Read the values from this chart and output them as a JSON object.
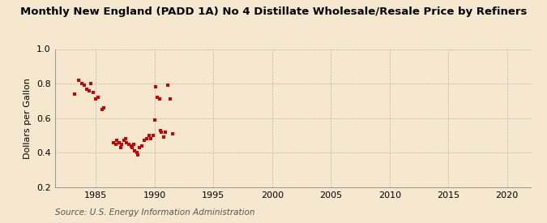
{
  "title": "Monthly New England (PADD 1A) No 4 Distillate Wholesale/Resale Price by Refiners",
  "ylabel": "Dollars per Gallon",
  "source": "Source: U.S. Energy Information Administration",
  "background_color": "#f5e8ce",
  "plot_bg_color": "#f5e8ce",
  "marker_color": "#cc0000",
  "marker_size": 3.5,
  "xlim": [
    1981.5,
    2022
  ],
  "ylim": [
    0.2,
    1.0
  ],
  "xticks": [
    1985,
    1990,
    1995,
    2000,
    2005,
    2010,
    2015,
    2020
  ],
  "yticks": [
    0.2,
    0.4,
    0.6,
    0.8,
    1.0
  ],
  "x": [
    1983.2,
    1983.5,
    1983.8,
    1984.0,
    1984.2,
    1984.4,
    1984.6,
    1984.8,
    1985.0,
    1985.2,
    1985.5,
    1985.7,
    1986.5,
    1986.7,
    1986.8,
    1987.0,
    1987.1,
    1987.2,
    1987.4,
    1987.5,
    1987.6,
    1987.8,
    1988.0,
    1988.1,
    1988.2,
    1988.3,
    1988.5,
    1988.6,
    1988.7,
    1988.9,
    1989.1,
    1989.3,
    1989.5,
    1989.7,
    1989.9,
    1990.0,
    1990.1,
    1990.2,
    1990.4,
    1990.5,
    1990.6,
    1990.8,
    1990.9,
    1991.1,
    1991.3,
    1991.5
  ],
  "y": [
    0.74,
    0.82,
    0.8,
    0.79,
    0.77,
    0.76,
    0.8,
    0.75,
    0.71,
    0.72,
    0.65,
    0.66,
    0.46,
    0.45,
    0.47,
    0.46,
    0.43,
    0.45,
    0.47,
    0.48,
    0.46,
    0.45,
    0.44,
    0.43,
    0.45,
    0.41,
    0.4,
    0.39,
    0.43,
    0.44,
    0.47,
    0.48,
    0.5,
    0.48,
    0.5,
    0.59,
    0.78,
    0.72,
    0.71,
    0.53,
    0.52,
    0.49,
    0.52,
    0.79,
    0.71,
    0.51
  ],
  "title_fontsize": 9.5,
  "label_fontsize": 8,
  "tick_fontsize": 8,
  "source_fontsize": 7.5
}
